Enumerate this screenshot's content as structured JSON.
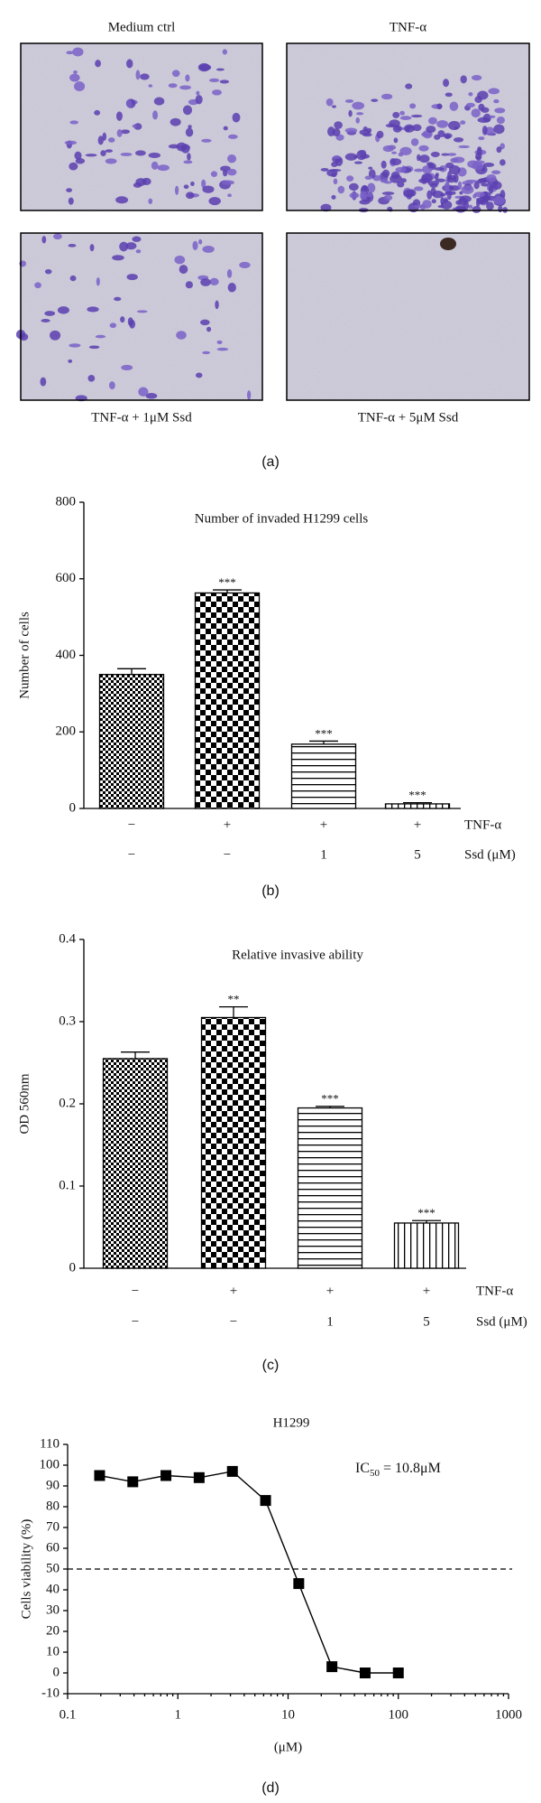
{
  "figure_a": {
    "labels": [
      "Medium ctrl",
      "TNF-α",
      "TNF-α + 1μM Ssd",
      "TNF-α + 5μM Ssd"
    ],
    "caption": "(a)"
  },
  "chart_data": [
    {
      "type": "bar",
      "caption": "(b)",
      "title": "Number of invaded H1299 cells",
      "ylabel": "Number of cells",
      "categories": [
        null,
        null,
        null,
        null
      ],
      "values": [
        350,
        563,
        168,
        12
      ],
      "errors": [
        15,
        8,
        8,
        3
      ],
      "labels": [
        null,
        "***",
        "***",
        "***"
      ],
      "patterns": [
        "checker-small",
        "checker-large",
        "hstripes",
        "vstripes"
      ],
      "rows": [
        {
          "label": "TNF-α",
          "values": [
            "−",
            "+",
            "+",
            "+"
          ]
        },
        {
          "label": "Ssd (μM)",
          "values": [
            "−",
            "−",
            "1",
            "5"
          ]
        }
      ],
      "ylim": [
        0,
        800
      ],
      "yticks": [
        0,
        200,
        400,
        600,
        800
      ]
    },
    {
      "type": "bar",
      "caption": "(c)",
      "title": "Relative invasive ability",
      "ylabel": "OD 560nm",
      "categories": [
        null,
        null,
        null,
        null
      ],
      "values": [
        0.255,
        0.305,
        0.195,
        0.055
      ],
      "errors": [
        0.008,
        0.013,
        0.002,
        0.003
      ],
      "labels": [
        null,
        "**",
        "***",
        "***"
      ],
      "patterns": [
        "checker-small",
        "checker-large",
        "hstripes",
        "vstripes"
      ],
      "rows": [
        {
          "label": "TNF-α",
          "values": [
            "−",
            "+",
            "+",
            "+"
          ]
        },
        {
          "label": "Ssd (μM)",
          "values": [
            "−",
            "−",
            "1",
            "5"
          ]
        }
      ],
      "ylim": [
        0,
        0.4
      ],
      "yticks": [
        0,
        0.1,
        0.2,
        0.3,
        0.4
      ]
    },
    {
      "type": "line",
      "caption": "(d)",
      "title": "H1299",
      "xlabel": "(μM)",
      "ylabel": "Cells viability (%)",
      "annotation": [
        "IC",
        "50",
        " = 10.8μM"
      ],
      "x": [
        0.195,
        0.39,
        0.78,
        1.56,
        3.125,
        6.25,
        12.5,
        25,
        50,
        100
      ],
      "series": [
        {
          "name": "H1299",
          "color": "#000000",
          "values": [
            95,
            92,
            95,
            94,
            97,
            83,
            43,
            3,
            0,
            0
          ]
        }
      ],
      "hline": 50,
      "xscale": "log",
      "xlim": [
        0.1,
        1000
      ],
      "xticks": [
        0.1,
        1,
        10,
        100,
        1000
      ],
      "ylim": [
        -10,
        110
      ],
      "yticks": [
        -10,
        0,
        10,
        20,
        30,
        40,
        50,
        60,
        70,
        80,
        90,
        100,
        110
      ]
    }
  ]
}
